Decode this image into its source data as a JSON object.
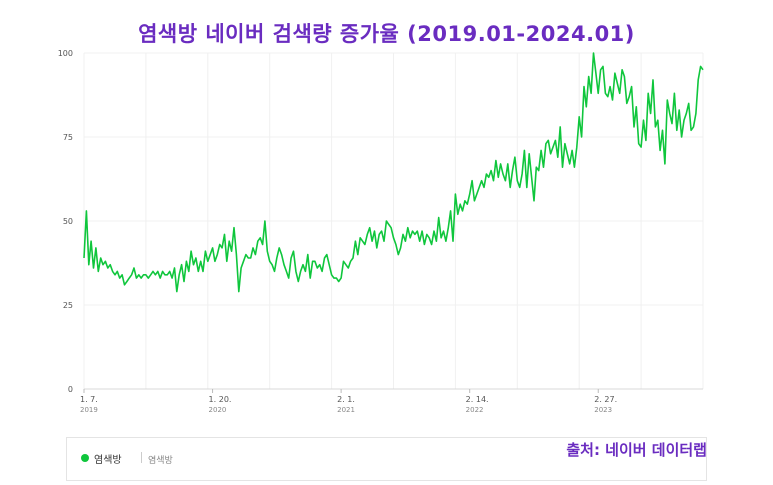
{
  "chart_data": {
    "type": "line",
    "title": "염색방 네이버 검색량 증가율 (2019.01-2024.01)",
    "xlabel": "",
    "ylabel": "",
    "ylim": [
      0,
      100
    ],
    "yticks": [
      "0",
      "25",
      "50",
      "75",
      "100"
    ],
    "xticks": [
      {
        "label": "1. 7.",
        "year": "2019",
        "index": 0
      },
      {
        "label": "1. 20.",
        "year": "2020",
        "index": 54
      },
      {
        "label": "2. 1.",
        "year": "2021",
        "index": 108
      },
      {
        "label": "2. 14.",
        "year": "2022",
        "index": 162
      },
      {
        "label": "2. 27.",
        "year": "2023",
        "index": 216
      }
    ],
    "grid": true,
    "series": [
      {
        "name": "염색방",
        "color": "#0fc63c",
        "values": [
          39,
          53,
          37,
          44,
          36,
          42,
          35,
          39,
          37,
          38,
          36,
          37,
          35,
          34,
          35,
          33,
          34,
          31,
          32,
          33,
          34,
          36,
          33,
          34,
          33,
          34,
          34,
          33,
          34,
          35,
          34,
          35,
          33,
          35,
          34,
          34,
          35,
          33,
          36,
          29,
          34,
          37,
          32,
          38,
          35,
          41,
          37,
          39,
          35,
          38,
          35,
          41,
          38,
          40,
          42,
          38,
          40,
          43,
          42,
          46,
          38,
          44,
          41,
          48,
          40,
          29,
          36,
          38,
          40,
          39,
          39,
          42,
          40,
          44,
          45,
          43,
          50,
          41,
          38,
          37,
          35,
          39,
          42,
          40,
          37,
          35,
          33,
          39,
          41,
          35,
          32,
          35,
          37,
          35,
          40,
          33,
          38,
          38,
          36,
          37,
          35,
          39,
          40,
          37,
          34,
          33,
          33,
          32,
          33,
          38,
          37,
          36,
          38,
          39,
          44,
          40,
          45,
          44,
          43,
          46,
          48,
          44,
          47,
          42,
          46,
          47,
          44,
          50,
          49,
          48,
          45,
          43,
          40,
          42,
          46,
          44,
          48,
          45,
          47,
          46,
          47,
          44,
          47,
          43,
          46,
          45,
          43,
          47,
          44,
          51,
          45,
          47,
          44,
          48,
          53,
          44,
          58,
          52,
          55,
          53,
          56,
          55,
          58,
          62,
          56,
          58,
          60,
          62,
          60,
          64,
          63,
          65,
          62,
          68,
          63,
          67,
          64,
          62,
          67,
          60,
          65,
          69,
          62,
          60,
          64,
          71,
          60,
          70,
          63,
          56,
          66,
          65,
          71,
          66,
          73,
          74,
          70,
          72,
          74,
          69,
          78,
          66,
          73,
          70,
          67,
          71,
          66,
          72,
          81,
          75,
          90,
          84,
          93,
          88,
          100,
          94,
          88,
          95,
          96,
          88,
          87,
          90,
          86,
          94,
          91,
          88,
          95,
          93,
          85,
          87,
          90,
          78,
          84,
          73,
          72,
          80,
          74,
          88,
          82,
          92,
          78,
          80,
          71,
          77,
          67,
          86,
          82,
          79,
          88,
          77,
          83,
          75,
          80,
          82,
          85,
          77,
          78,
          82,
          92,
          96,
          95
        ]
      }
    ]
  },
  "legend": {
    "label": "염색방",
    "sub": "염색방"
  },
  "source": "출처: 네이버 데이터랩"
}
